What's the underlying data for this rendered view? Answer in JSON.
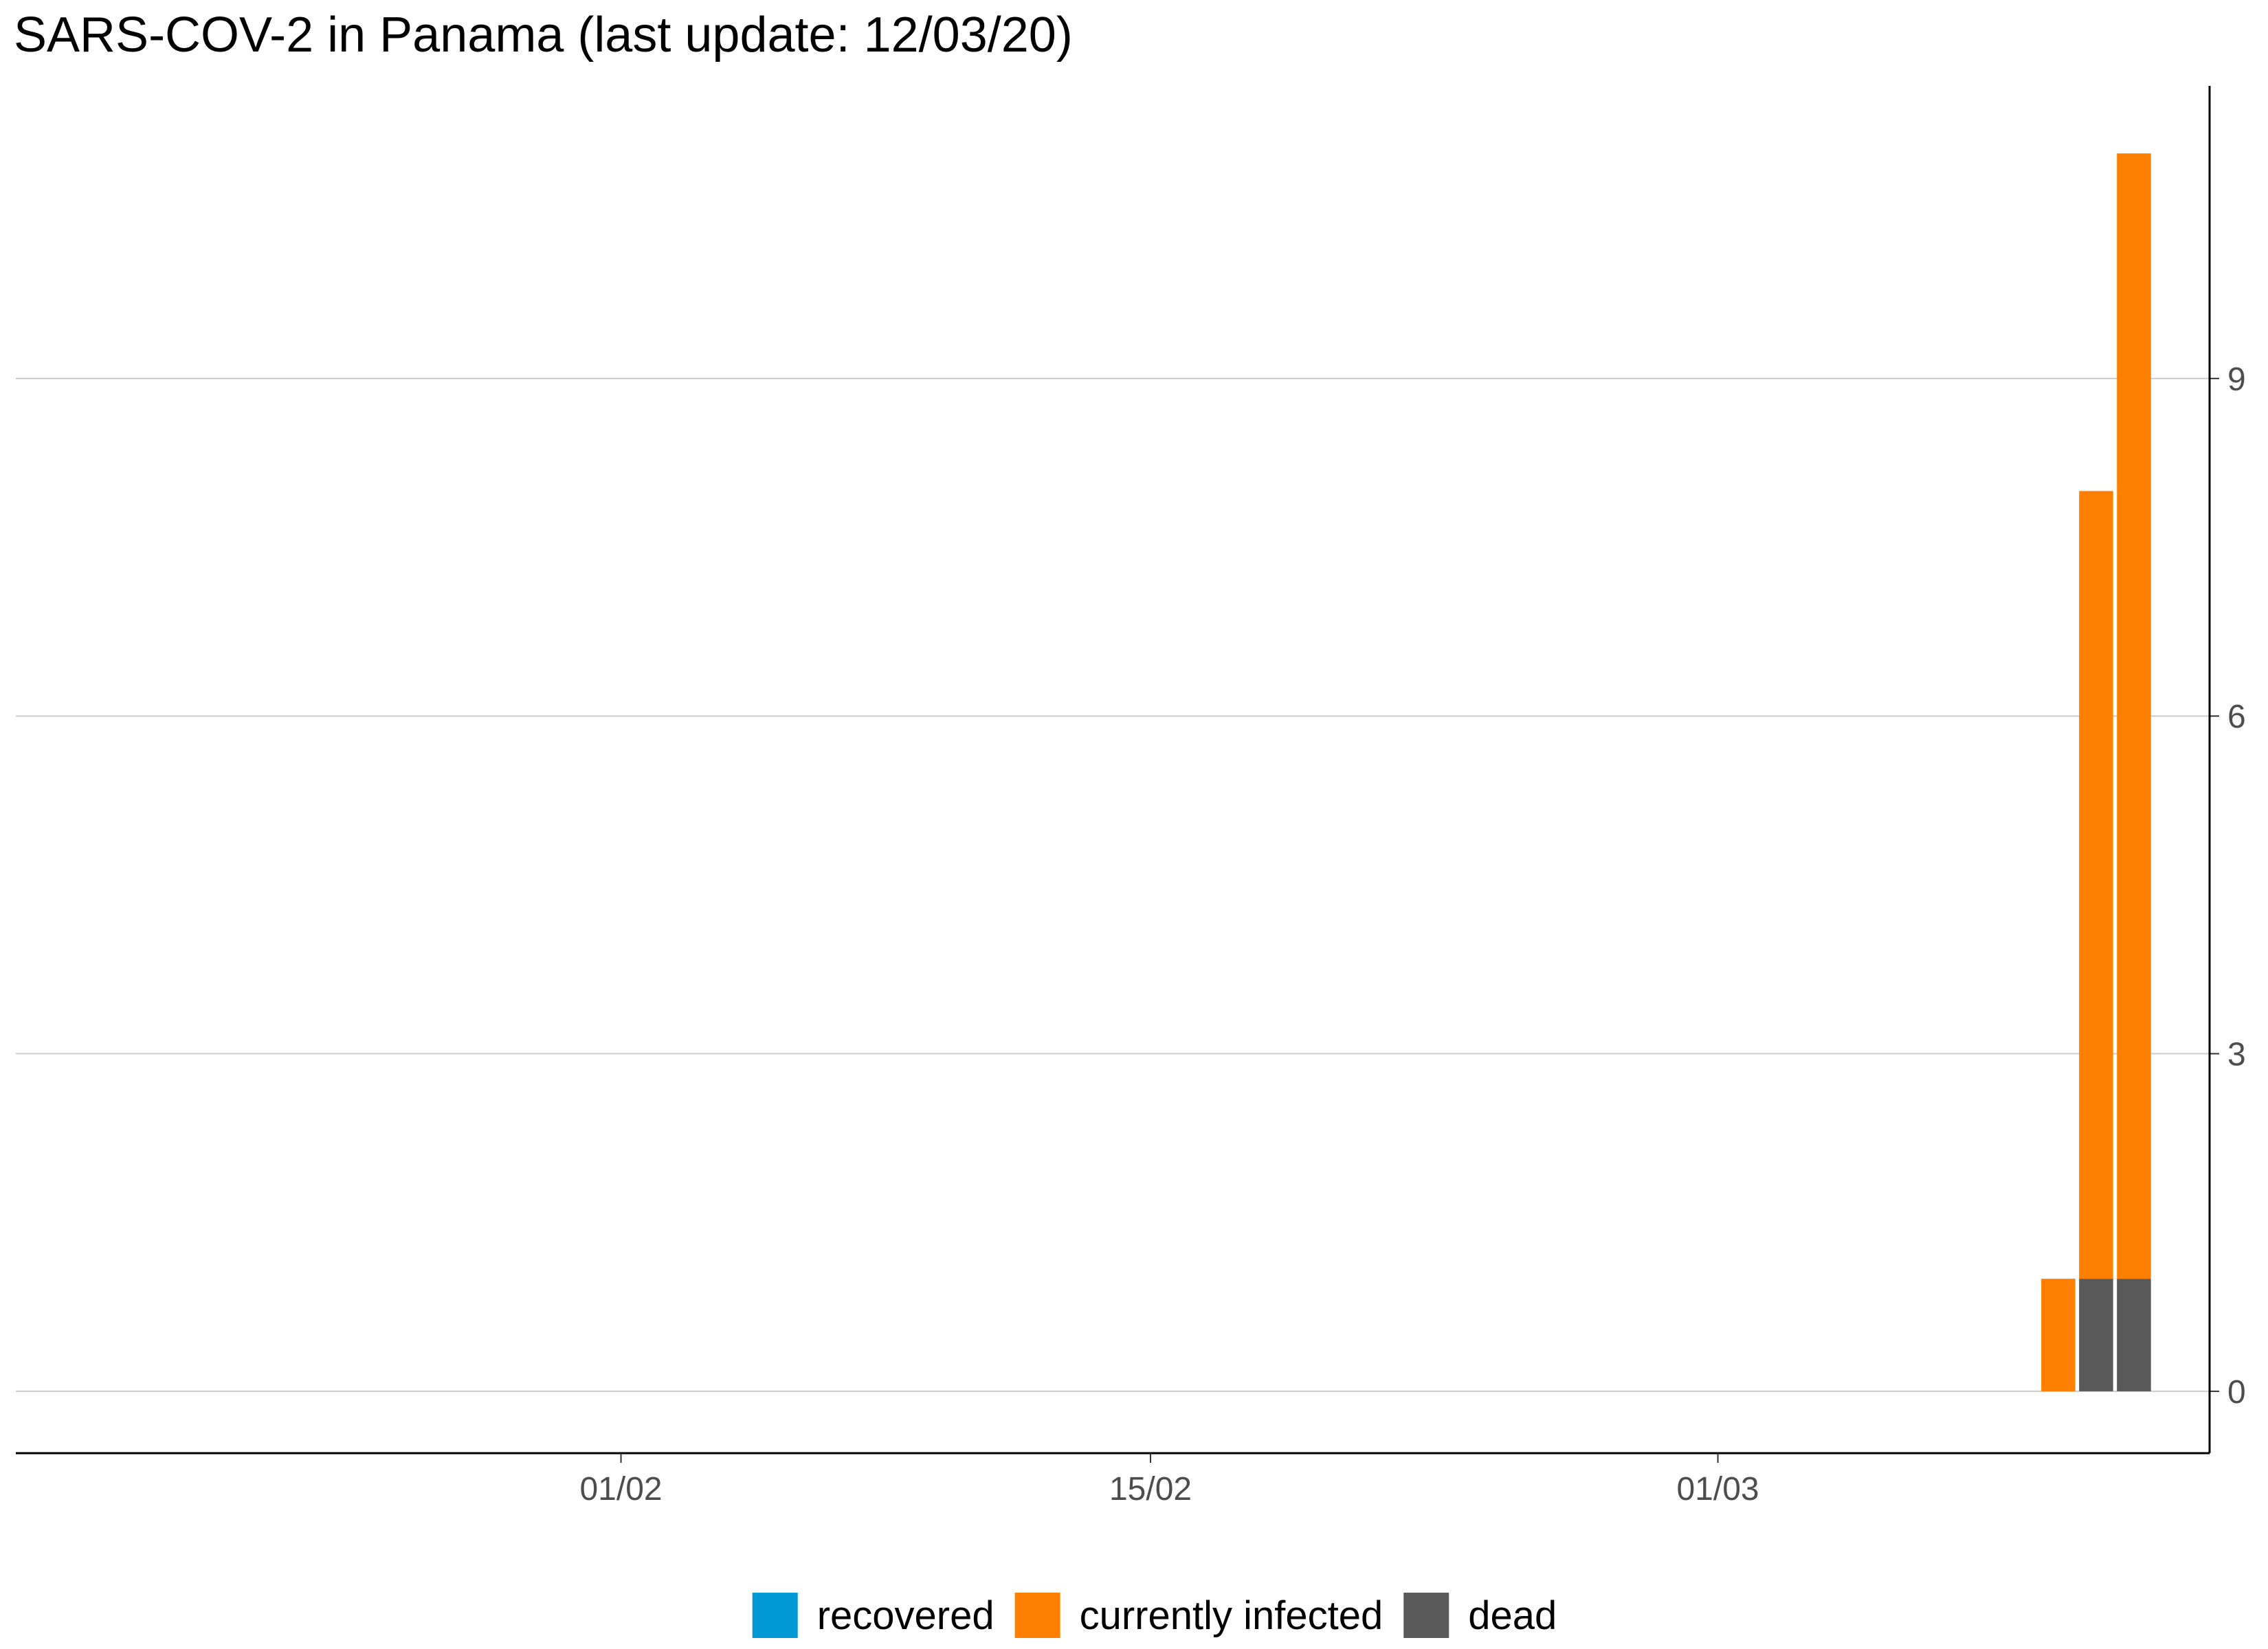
{
  "chart_data": {
    "type": "bar",
    "stacked": true,
    "title": "SARS-COV-2 in Panama (last update: 12/03/20)",
    "xlabel": "",
    "ylabel": "",
    "x_axis": {
      "type": "date",
      "range": [
        "2020-01-16",
        "2020-03-14"
      ],
      "ticks": [
        {
          "date": "2020-02-01",
          "label": "01/02"
        },
        {
          "date": "2020-02-15",
          "label": "15/02"
        },
        {
          "date": "2020-03-01",
          "label": "01/03"
        }
      ]
    },
    "y_axis": {
      "position": "right",
      "range": [
        -0.55,
        11.6
      ],
      "ticks": [
        0,
        3,
        6,
        9
      ]
    },
    "grid": {
      "horizontal": true,
      "vertical": false
    },
    "legend_position": "bottom",
    "categories": [
      "2020-03-10",
      "2020-03-11",
      "2020-03-12"
    ],
    "series": [
      {
        "name": "recovered",
        "color": "#0099d6",
        "values": [
          0,
          0,
          0
        ]
      },
      {
        "name": "dead",
        "color": "#595959",
        "values": [
          0,
          1,
          1
        ]
      },
      {
        "name": "currently infected",
        "color": "#ff8000",
        "values": [
          1,
          7,
          10
        ]
      }
    ],
    "legend_order": [
      "recovered",
      "currently infected",
      "dead"
    ],
    "stack_order_bottom_to_top": [
      "dead",
      "currently infected"
    ]
  }
}
